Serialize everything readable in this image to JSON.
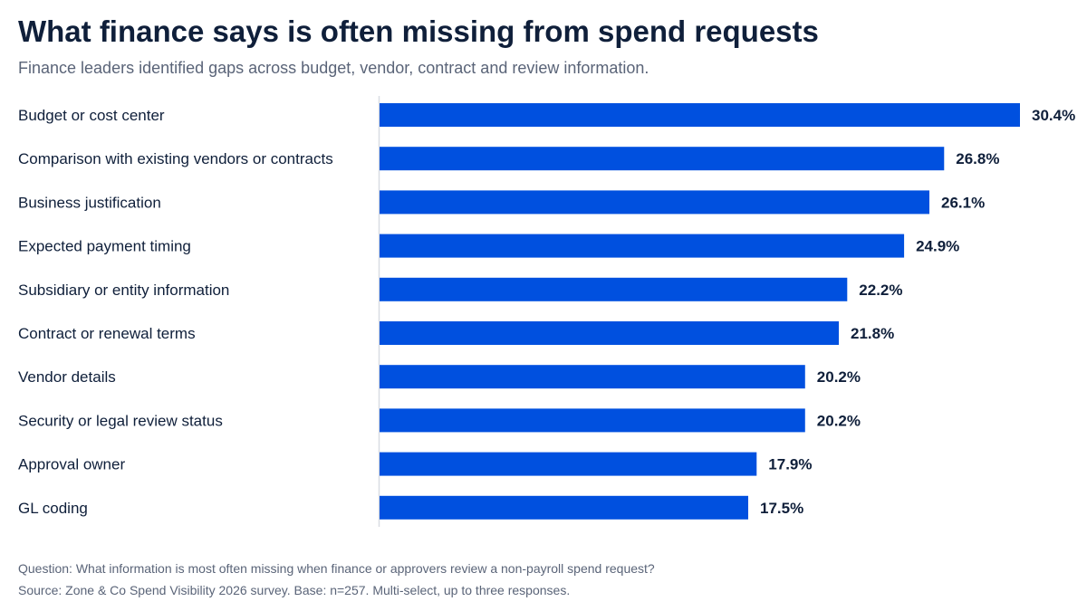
{
  "title": "What finance says is often missing from spend requests",
  "subtitle": "Finance leaders identified gaps across budget, vendor, contract and review information.",
  "chart_data": {
    "type": "bar",
    "orientation": "horizontal",
    "categories": [
      "Budget or cost center",
      "Comparison with existing vendors or contracts",
      "Business justification",
      "Expected payment timing",
      "Subsidiary or entity information",
      "Contract or renewal terms",
      "Vendor details",
      "Security or legal review status",
      "Approval owner",
      "GL coding"
    ],
    "values": [
      30.4,
      26.8,
      26.1,
      24.9,
      22.2,
      21.8,
      20.2,
      20.2,
      17.9,
      17.5
    ],
    "value_labels": [
      "30.4%",
      "26.8%",
      "26.1%",
      "24.9%",
      "22.2%",
      "21.8%",
      "20.2%",
      "20.2%",
      "17.9%",
      "17.5%"
    ],
    "unit": "%",
    "xlim": [
      0,
      30.4
    ],
    "grid": false,
    "legend": "none",
    "bar_color": "#0050df",
    "axis_color": "#d9dde3"
  },
  "footnotes": {
    "question": "Question: What information is most often missing when finance or approvers review a non-payroll spend request?",
    "source": "Source: Zone & Co Spend Visibility 2026 survey. Base: n=257. Multi-select, up to three responses."
  }
}
